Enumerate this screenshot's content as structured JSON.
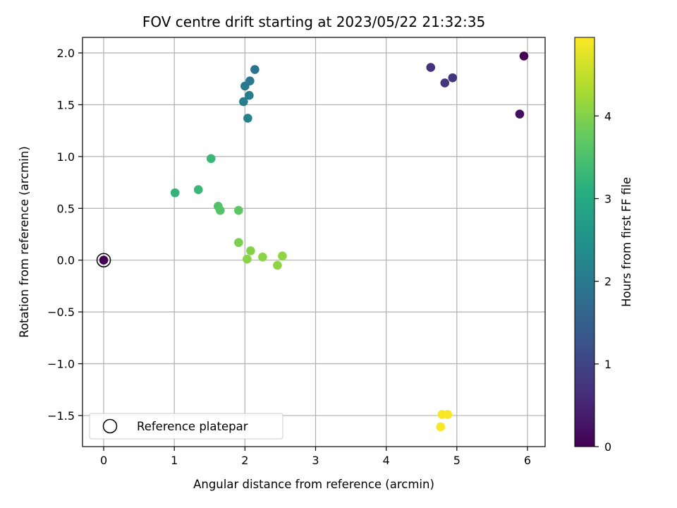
{
  "chart_data": {
    "type": "scatter",
    "title": "FOV centre drift starting at 2023/05/22 21:32:35",
    "xlabel": "Angular distance from reference (arcmin)",
    "ylabel": "Rotation from reference (arcmin)",
    "xlim": [
      -0.3,
      6.25
    ],
    "ylim": [
      -1.8,
      2.15
    ],
    "xticks": [
      0,
      1,
      2,
      3,
      4,
      5,
      6
    ],
    "xtick_labels": [
      "0",
      "1",
      "2",
      "3",
      "4",
      "5",
      "6"
    ],
    "yticks": [
      2.0,
      1.5,
      1.0,
      0.5,
      0.0,
      -0.5,
      -1.0,
      -1.5
    ],
    "ytick_labels": [
      "2.0",
      "1.5",
      "1.0",
      "0.5",
      "0.0",
      "−0.5",
      "−1.0",
      "−1.5"
    ],
    "grid": true,
    "colorbar": {
      "label": "Hours from first FF file",
      "colormap": "viridis",
      "range": [
        0,
        4.95
      ],
      "ticks": [
        0,
        1,
        2,
        3,
        4
      ],
      "tick_labels": [
        "0",
        "1",
        "2",
        "3",
        "4"
      ]
    },
    "legend": {
      "placement": "lower-left",
      "entries": [
        {
          "label": "Reference platepar",
          "marker": "open-circle"
        }
      ]
    },
    "reference_point": {
      "x": 0.0,
      "y": 0.0
    },
    "points": [
      {
        "x": 0.0,
        "y": 0.0,
        "hours": 0.0
      },
      {
        "x": 5.95,
        "y": 1.97,
        "hours": 0.05
      },
      {
        "x": 5.89,
        "y": 1.41,
        "hours": 0.2
      },
      {
        "x": 4.63,
        "y": 1.86,
        "hours": 0.7
      },
      {
        "x": 4.83,
        "y": 1.71,
        "hours": 0.75
      },
      {
        "x": 4.94,
        "y": 1.76,
        "hours": 0.8
      },
      {
        "x": 2.14,
        "y": 1.84,
        "hours": 1.9
      },
      {
        "x": 2.07,
        "y": 1.73,
        "hours": 1.95
      },
      {
        "x": 2.0,
        "y": 1.68,
        "hours": 2.0
      },
      {
        "x": 2.06,
        "y": 1.59,
        "hours": 2.05
      },
      {
        "x": 1.98,
        "y": 1.53,
        "hours": 2.1
      },
      {
        "x": 2.04,
        "y": 1.37,
        "hours": 2.15
      },
      {
        "x": 1.52,
        "y": 0.98,
        "hours": 3.3
      },
      {
        "x": 1.01,
        "y": 0.65,
        "hours": 3.2
      },
      {
        "x": 1.34,
        "y": 0.68,
        "hours": 3.3
      },
      {
        "x": 1.62,
        "y": 0.52,
        "hours": 3.55
      },
      {
        "x": 1.65,
        "y": 0.48,
        "hours": 3.6
      },
      {
        "x": 1.91,
        "y": 0.48,
        "hours": 3.7
      },
      {
        "x": 1.91,
        "y": 0.17,
        "hours": 3.95
      },
      {
        "x": 2.08,
        "y": 0.09,
        "hours": 4.0
      },
      {
        "x": 2.03,
        "y": 0.01,
        "hours": 4.05
      },
      {
        "x": 2.25,
        "y": 0.03,
        "hours": 4.05
      },
      {
        "x": 2.53,
        "y": 0.04,
        "hours": 4.1
      },
      {
        "x": 2.46,
        "y": -0.05,
        "hours": 4.1
      },
      {
        "x": 4.79,
        "y": -1.49,
        "hours": 4.9
      },
      {
        "x": 4.87,
        "y": -1.49,
        "hours": 4.92
      },
      {
        "x": 4.77,
        "y": -1.61,
        "hours": 4.93
      }
    ]
  }
}
